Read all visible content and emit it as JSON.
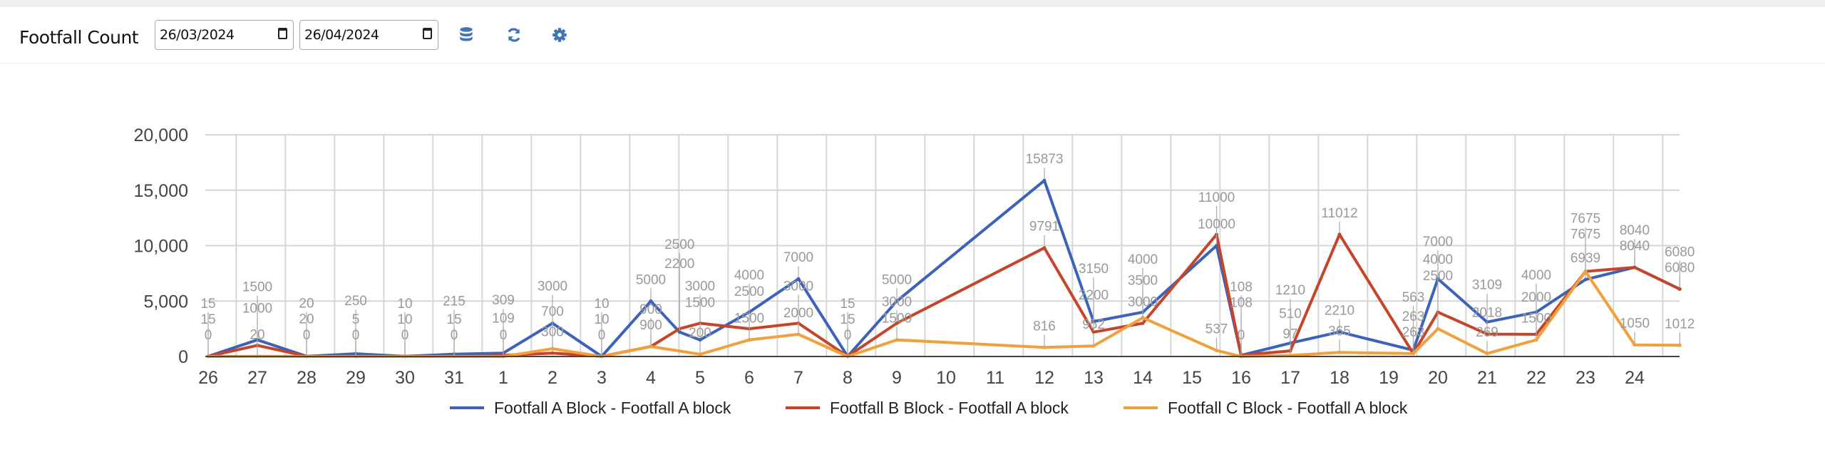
{
  "header": {
    "title": "Footfall Count",
    "start_date": "26/03/2024",
    "end_date": "26/04/2024",
    "icons": [
      "database-icon",
      "refresh-icon",
      "gear-icon"
    ],
    "icon_color": "#3f74b5"
  },
  "chart_data": {
    "type": "line",
    "title": "",
    "xlabel": "",
    "ylabel": "",
    "ylim": [
      0,
      20000
    ],
    "y_ticks": [
      "0",
      "5,000",
      "10,000",
      "15,000",
      "20,000"
    ],
    "y_tick_values": [
      0,
      5000,
      10000,
      15000,
      20000
    ],
    "x_tick_labels": [
      "26",
      "27",
      "28",
      "29",
      "30",
      "31",
      "1",
      "2",
      "3",
      "4",
      "5",
      "6",
      "7",
      "8",
      "9",
      "10",
      "11",
      "12",
      "13",
      "14",
      "15",
      "16",
      "17",
      "18",
      "19",
      "20",
      "21",
      "22",
      "23",
      "24"
    ],
    "x_tick_dates": [
      "2024-03-26",
      "2024-03-27",
      "2024-03-28",
      "2024-03-29",
      "2024-03-30",
      "2024-03-31",
      "2024-04-01",
      "2024-04-02",
      "2024-04-03",
      "2024-04-04",
      "2024-04-05",
      "2024-04-06",
      "2024-04-07",
      "2024-04-08",
      "2024-04-09",
      "2024-04-10",
      "2024-04-11",
      "2024-04-12",
      "2024-04-13",
      "2024-04-14",
      "2024-04-15",
      "2024-04-16",
      "2024-04-17",
      "2024-04-18",
      "2024-04-19",
      "2024-04-20",
      "2024-04-21",
      "2024-04-22",
      "2024-04-23",
      "2024-04-24"
    ],
    "grid": true,
    "legend_position": "bottom",
    "data_labels": true,
    "series": [
      {
        "name": "Footfall A Block - Footfall A block",
        "color": "#3d62b9",
        "points": [
          {
            "x": "2024-03-26T00:00",
            "y": 15
          },
          {
            "x": "2024-03-27T00:00",
            "y": 1500
          },
          {
            "x": "2024-03-28T00:00",
            "y": 20
          },
          {
            "x": "2024-03-29T00:00",
            "y": 250
          },
          {
            "x": "2024-03-30T00:00",
            "y": 10
          },
          {
            "x": "2024-03-31T00:00",
            "y": 215
          },
          {
            "x": "2024-04-01T00:00",
            "y": 309
          },
          {
            "x": "2024-04-02T00:00",
            "y": 3000
          },
          {
            "x": "2024-04-03T00:00",
            "y": 10
          },
          {
            "x": "2024-04-04T00:00",
            "y": 5000
          },
          {
            "x": "2024-04-04T14:00",
            "y": 2200
          },
          {
            "x": "2024-04-05T00:00",
            "y": 1500
          },
          {
            "x": "2024-04-06T00:00",
            "y": 4000
          },
          {
            "x": "2024-04-07T00:00",
            "y": 7000
          },
          {
            "x": "2024-04-08T00:00",
            "y": 15
          },
          {
            "x": "2024-04-09T00:00",
            "y": 5000
          },
          {
            "x": "2024-04-12T00:00",
            "y": 15873
          },
          {
            "x": "2024-04-13T00:00",
            "y": 3150
          },
          {
            "x": "2024-04-14T00:00",
            "y": 4000
          },
          {
            "x": "2024-04-15T12:00",
            "y": 10000
          },
          {
            "x": "2024-04-16T00:00",
            "y": 108
          },
          {
            "x": "2024-04-17T00:00",
            "y": 1210
          },
          {
            "x": "2024-04-18T00:00",
            "y": 2210
          },
          {
            "x": "2024-04-19T12:00",
            "y": 563
          },
          {
            "x": "2024-04-20T00:00",
            "y": 7000
          },
          {
            "x": "2024-04-21T00:00",
            "y": 3109
          },
          {
            "x": "2024-04-22T00:00",
            "y": 4000
          },
          {
            "x": "2024-04-23T00:00",
            "y": 6939
          },
          {
            "x": "2024-04-24T00:00",
            "y": 8040
          },
          {
            "x": "2024-04-24T22:00",
            "y": 6080
          }
        ]
      },
      {
        "name": "Footfall B Block - Footfall A block",
        "color": "#c4452a",
        "points": [
          {
            "x": "2024-03-26T00:00",
            "y": 15
          },
          {
            "x": "2024-03-27T00:00",
            "y": 1000
          },
          {
            "x": "2024-03-28T00:00",
            "y": 20
          },
          {
            "x": "2024-03-29T00:00",
            "y": 5
          },
          {
            "x": "2024-03-30T00:00",
            "y": 10
          },
          {
            "x": "2024-03-31T00:00",
            "y": 15
          },
          {
            "x": "2024-04-01T00:00",
            "y": 109
          },
          {
            "x": "2024-04-02T00:00",
            "y": 300
          },
          {
            "x": "2024-04-03T00:00",
            "y": 10
          },
          {
            "x": "2024-04-04T00:00",
            "y": 900
          },
          {
            "x": "2024-04-04T14:00",
            "y": 2500
          },
          {
            "x": "2024-04-05T00:00",
            "y": 3000
          },
          {
            "x": "2024-04-06T00:00",
            "y": 2500
          },
          {
            "x": "2024-04-07T00:00",
            "y": 3000
          },
          {
            "x": "2024-04-08T00:00",
            "y": 15
          },
          {
            "x": "2024-04-09T00:00",
            "y": 3000
          },
          {
            "x": "2024-04-12T00:00",
            "y": 9791
          },
          {
            "x": "2024-04-13T00:00",
            "y": 2200
          },
          {
            "x": "2024-04-14T00:00",
            "y": 3000
          },
          {
            "x": "2024-04-15T12:00",
            "y": 11000
          },
          {
            "x": "2024-04-16T00:00",
            "y": 108
          },
          {
            "x": "2024-04-17T00:00",
            "y": 510
          },
          {
            "x": "2024-04-18T00:00",
            "y": 11012
          },
          {
            "x": "2024-04-19T12:00",
            "y": 263
          },
          {
            "x": "2024-04-20T00:00",
            "y": 4000
          },
          {
            "x": "2024-04-21T00:00",
            "y": 2018
          },
          {
            "x": "2024-04-22T00:00",
            "y": 2000
          },
          {
            "x": "2024-04-23T00:00",
            "y": 7675
          },
          {
            "x": "2024-04-24T00:00",
            "y": 8040
          },
          {
            "x": "2024-04-24T22:00",
            "y": 6080
          }
        ]
      },
      {
        "name": "Footfall C Block - Footfall A block",
        "color": "#f0a03c",
        "points": [
          {
            "x": "2024-03-26T00:00",
            "y": 0
          },
          {
            "x": "2024-03-27T00:00",
            "y": 20
          },
          {
            "x": "2024-03-28T00:00",
            "y": 0
          },
          {
            "x": "2024-03-29T00:00",
            "y": 0
          },
          {
            "x": "2024-03-30T00:00",
            "y": 0
          },
          {
            "x": "2024-03-31T00:00",
            "y": 0
          },
          {
            "x": "2024-04-01T00:00",
            "y": 0
          },
          {
            "x": "2024-04-02T00:00",
            "y": 700
          },
          {
            "x": "2024-04-03T00:00",
            "y": 0
          },
          {
            "x": "2024-04-04T00:00",
            "y": 900
          },
          {
            "x": "2024-04-05T00:00",
            "y": 200
          },
          {
            "x": "2024-04-06T00:00",
            "y": 1500
          },
          {
            "x": "2024-04-07T00:00",
            "y": 2000
          },
          {
            "x": "2024-04-08T00:00",
            "y": 0
          },
          {
            "x": "2024-04-09T00:00",
            "y": 1500
          },
          {
            "x": "2024-04-12T00:00",
            "y": 816
          },
          {
            "x": "2024-04-13T00:00",
            "y": 952
          },
          {
            "x": "2024-04-14T00:00",
            "y": 3500
          },
          {
            "x": "2024-04-15T12:00",
            "y": 537
          },
          {
            "x": "2024-04-16T00:00",
            "y": 0
          },
          {
            "x": "2024-04-17T00:00",
            "y": 97
          },
          {
            "x": "2024-04-18T00:00",
            "y": 365
          },
          {
            "x": "2024-04-19T12:00",
            "y": 263
          },
          {
            "x": "2024-04-20T00:00",
            "y": 2500
          },
          {
            "x": "2024-04-21T00:00",
            "y": 269
          },
          {
            "x": "2024-04-22T00:00",
            "y": 1500
          },
          {
            "x": "2024-04-23T00:00",
            "y": 7675
          },
          {
            "x": "2024-04-24T00:00",
            "y": 1050
          },
          {
            "x": "2024-04-24T22:00",
            "y": 1012
          }
        ]
      }
    ]
  }
}
